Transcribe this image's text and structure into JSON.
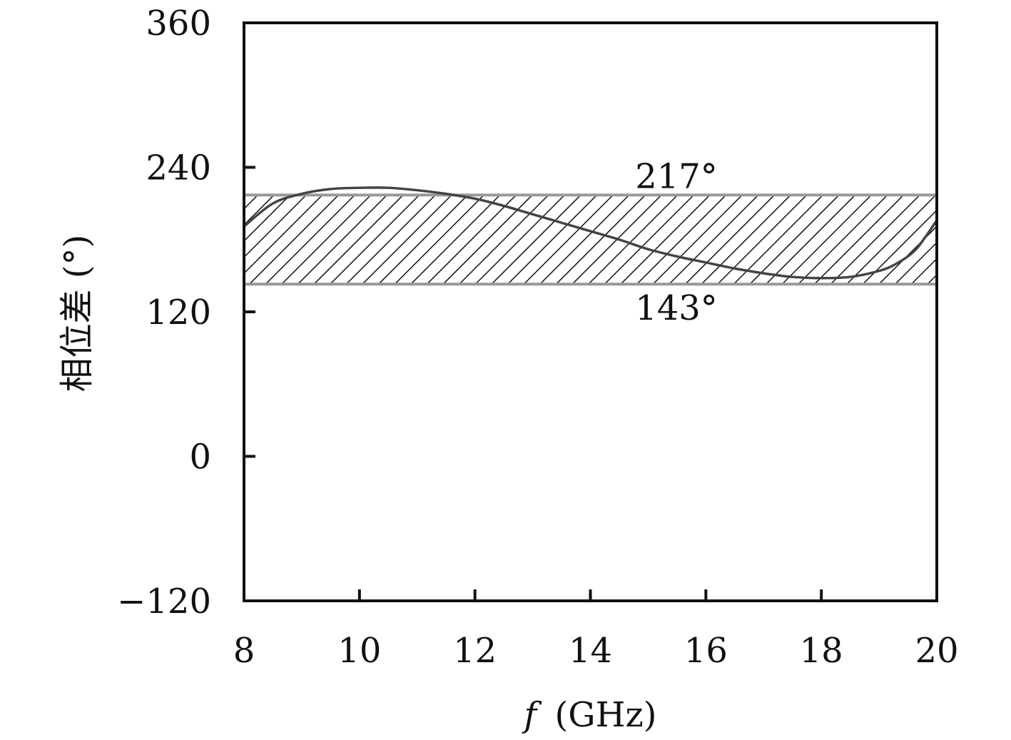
{
  "chart_data": {
    "type": "line",
    "xlabel_symbol": "f",
    "xlabel_unit": "(GHz)",
    "ylabel": "相位差 (°)",
    "xlim": [
      8,
      20
    ],
    "ylim": [
      -120,
      360
    ],
    "xticks": [
      {
        "value": 8,
        "label": "8"
      },
      {
        "value": 10,
        "label": "10"
      },
      {
        "value": 12,
        "label": "12"
      },
      {
        "value": 14,
        "label": "14"
      },
      {
        "value": 16,
        "label": "16"
      },
      {
        "value": 18,
        "label": "18"
      },
      {
        "value": 20,
        "label": "20"
      }
    ],
    "yticks": [
      {
        "value": -120,
        "label": "−120"
      },
      {
        "value": 0,
        "label": "0"
      },
      {
        "value": 120,
        "label": "120"
      },
      {
        "value": 240,
        "label": "240"
      },
      {
        "value": 360,
        "label": "360"
      }
    ],
    "band": {
      "lower": 143,
      "upper": 217,
      "lower_label": "143°",
      "upper_label": "217°",
      "fill": "hatched",
      "border_color": "#999999"
    },
    "grid": false,
    "series": [
      {
        "color": "#444444",
        "x": [
          8.0,
          8.5,
          9.0,
          9.5,
          10.0,
          10.5,
          11.0,
          11.5,
          12.0,
          12.5,
          13.0,
          13.5,
          14.0,
          14.5,
          15.0,
          15.5,
          16.0,
          16.5,
          17.0,
          17.5,
          18.0,
          18.5,
          19.0,
          19.3,
          19.6,
          19.8,
          20.0
        ],
        "y": [
          191,
          210,
          218,
          222,
          223,
          223,
          221,
          218,
          214,
          208,
          201,
          194,
          187,
          180,
          172,
          166,
          161,
          156,
          152,
          149,
          148,
          149,
          154,
          160,
          170,
          182,
          196
        ]
      }
    ]
  }
}
